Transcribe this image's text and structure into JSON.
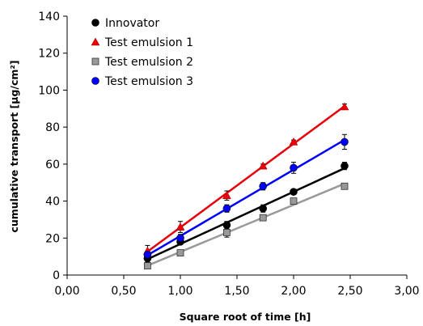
{
  "chart_data": {
    "type": "scatter",
    "xlabel": "Square root of time [h]",
    "ylabel": "cumulative transport [µg/cm²]",
    "xlim": [
      0,
      3
    ],
    "ylim": [
      0,
      140
    ],
    "x_ticks": [
      "0,00",
      "0,50",
      "1,00",
      "1,50",
      "2,00",
      "2,50",
      "3,00"
    ],
    "x_tick_values": [
      0,
      0.5,
      1,
      1.5,
      2,
      2.5,
      3
    ],
    "y_ticks": [
      "0",
      "20",
      "40",
      "60",
      "80",
      "100",
      "120",
      "140"
    ],
    "y_tick_values": [
      0,
      20,
      40,
      60,
      80,
      100,
      120,
      140
    ],
    "grid": false,
    "legend_position": "top-left",
    "trendlines": "linear",
    "series": [
      {
        "name": "Innovator",
        "marker": "circle",
        "color": "#000000",
        "line_color": "#000000",
        "x": [
          0.71,
          1.0,
          1.41,
          1.73,
          2.0,
          2.45
        ],
        "y": [
          9,
          18,
          27,
          36,
          45,
          59
        ],
        "err": [
          2,
          1.5,
          2,
          2,
          1,
          2
        ]
      },
      {
        "name": "Test emulsion 1",
        "marker": "triangle",
        "color": "#e8000b",
        "line_color": "#e8000b",
        "x": [
          0.71,
          1.0,
          1.41,
          1.73,
          2.0,
          2.45
        ],
        "y": [
          13,
          26,
          43,
          59,
          72,
          91
        ],
        "err": [
          3,
          3,
          2.5,
          1,
          1,
          1.5
        ]
      },
      {
        "name": "Test emulsion 2",
        "marker": "square",
        "color": "#999999",
        "line_color": "#999999",
        "x": [
          0.71,
          1.0,
          1.41,
          1.73,
          2.0,
          2.45
        ],
        "y": [
          5,
          12,
          23,
          31,
          40,
          48
        ],
        "err": [
          1,
          1.5,
          2.5,
          1.5,
          1,
          1
        ]
      },
      {
        "name": "Test emulsion 3",
        "marker": "circle",
        "color": "#0000ff",
        "line_color": "#0000ff",
        "x": [
          0.71,
          1.0,
          1.41,
          1.73,
          2.0,
          2.45
        ],
        "y": [
          11,
          20,
          36,
          48,
          58,
          72
        ],
        "err": [
          2,
          2,
          2,
          2,
          3,
          4
        ]
      }
    ]
  }
}
